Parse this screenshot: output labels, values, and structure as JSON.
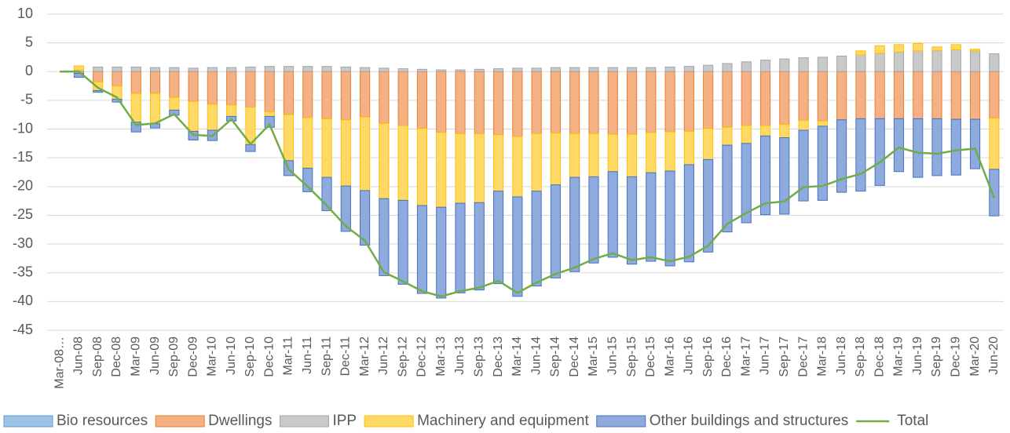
{
  "chart_data": {
    "type": "bar",
    "stacked": true,
    "categories": [
      "Mar-08…",
      "Jun-08",
      "Sep-08",
      "Dec-08",
      "Mar-09",
      "Jun-09",
      "Sep-09",
      "Dec-09",
      "Mar-10",
      "Jun-10",
      "Sep-10",
      "Dec-10",
      "Mar-11",
      "Jun-11",
      "Sep-11",
      "Dec-11",
      "Mar-12",
      "Jun-12",
      "Sep-12",
      "Dec-12",
      "Mar-13",
      "Jun-13",
      "Sep-13",
      "Dec-13",
      "Mar-14",
      "Jun-14",
      "Sep-14",
      "Dec-14",
      "Mar-15",
      "Jun-15",
      "Sep-15",
      "Dec-15",
      "Mar-16",
      "Jun-16",
      "Sep-16",
      "Dec-16",
      "Mar-17",
      "Jun-17",
      "Sep-17",
      "Dec-17",
      "Mar-18",
      "Jun-18",
      "Sep-18",
      "Dec-18",
      "Mar-19",
      "Jun-19",
      "Sep-19",
      "Dec-19",
      "Mar-20",
      "Jun-20"
    ],
    "series": [
      {
        "name": "Bio resources",
        "color": "#9dc3e6",
        "edgecolor": "#5b9bd5",
        "values": [
          0,
          0,
          0,
          0,
          0,
          0,
          0,
          0,
          0,
          0,
          0,
          0,
          0,
          0,
          0,
          0,
          0,
          0,
          0,
          0,
          0,
          0,
          0,
          0,
          0,
          0,
          0,
          0,
          0,
          0,
          0,
          0,
          0,
          0,
          0,
          0,
          0,
          0,
          0,
          0,
          0,
          0,
          0,
          0,
          0,
          0,
          0,
          0,
          0,
          0
        ]
      },
      {
        "name": "Dwellings",
        "color": "#f4b183",
        "edgecolor": "#ed7d31",
        "values": [
          0,
          -0.3,
          -1.8,
          -2.5,
          -3.8,
          -3.8,
          -4.5,
          -5.2,
          -5.7,
          -5.8,
          -6.2,
          -7.0,
          -7.5,
          -8.0,
          -8.2,
          -8.4,
          -7.9,
          -9.0,
          -9.4,
          -9.9,
          -10.6,
          -10.8,
          -10.8,
          -11.0,
          -11.3,
          -10.8,
          -10.7,
          -10.8,
          -10.8,
          -10.9,
          -10.9,
          -10.6,
          -10.5,
          -10.4,
          -9.9,
          -9.7,
          -9.4,
          -9.4,
          -9.2,
          -8.5,
          -8.6,
          -8.4,
          -8.2,
          -8.2,
          -8.2,
          -8.2,
          -8.2,
          -8.3,
          -8.3,
          -8.1
        ]
      },
      {
        "name": "IPP",
        "color": "#c9c9c9",
        "edgecolor": "#a5a5a5",
        "values": [
          0,
          0.3,
          0.8,
          0.8,
          0.8,
          0.7,
          0.7,
          0.6,
          0.7,
          0.7,
          0.8,
          0.9,
          0.9,
          0.9,
          0.9,
          0.8,
          0.7,
          0.6,
          0.5,
          0.4,
          0.3,
          0.3,
          0.4,
          0.5,
          0.6,
          0.6,
          0.7,
          0.7,
          0.7,
          0.7,
          0.7,
          0.7,
          0.8,
          0.9,
          1.1,
          1.4,
          1.7,
          2.0,
          2.2,
          2.4,
          2.5,
          2.7,
          2.9,
          3.2,
          3.4,
          3.6,
          3.7,
          3.8,
          3.6,
          3.1
        ]
      },
      {
        "name": "Machinery and equipment",
        "color": "#ffd966",
        "edgecolor": "#ffc000",
        "values": [
          0,
          0.7,
          -1.5,
          -2.3,
          -5.0,
          -5.3,
          -2.2,
          -5.2,
          -4.5,
          -2.0,
          -6.5,
          -0.8,
          -8.0,
          -8.8,
          -10.2,
          -11.5,
          -12.8,
          -13.1,
          -13.0,
          -13.4,
          -13.0,
          -12.1,
          -12.0,
          -9.8,
          -10.5,
          -10.0,
          -9.0,
          -7.6,
          -7.5,
          -6.5,
          -7.4,
          -7.0,
          -6.8,
          -5.8,
          -5.4,
          -3.1,
          -3.1,
          -1.8,
          -2.3,
          -1.7,
          -0.9,
          0,
          0.7,
          1.3,
          1.3,
          1.3,
          0.6,
          0.9,
          0.3,
          -8.9
        ]
      },
      {
        "name": "Other buildings and structures",
        "color": "#8faadc",
        "edgecolor": "#4472c4",
        "values": [
          0,
          -0.7,
          -0.3,
          -0.5,
          -1.7,
          -0.7,
          -0.9,
          -1.5,
          -1.8,
          -0.8,
          -1.2,
          -1.9,
          -2.6,
          -4.1,
          -5.8,
          -7.9,
          -9.5,
          -13.4,
          -14.6,
          -15.3,
          -15.8,
          -15.6,
          -15.2,
          -16.1,
          -17.3,
          -16.5,
          -16.2,
          -16.4,
          -15.0,
          -14.9,
          -15.2,
          -15.4,
          -16.5,
          -16.9,
          -16.1,
          -15.1,
          -13.8,
          -13.7,
          -13.3,
          -12.3,
          -12.9,
          -12.6,
          -12.6,
          -11.6,
          -9.2,
          -10.2,
          -9.9,
          -9.7,
          -8.6,
          -8.1
        ]
      },
      {
        "name": "Total",
        "type": "line",
        "color": "#70ad47",
        "values": [
          0,
          0,
          -2.8,
          -4.5,
          -9.3,
          -9.0,
          -7.4,
          -11.0,
          -11.2,
          -8.3,
          -12.6,
          -9.2,
          -17.0,
          -20.0,
          -23.3,
          -26.9,
          -29.4,
          -34.9,
          -36.5,
          -38.2,
          -39.1,
          -38.2,
          -37.6,
          -36.4,
          -38.5,
          -36.7,
          -35.2,
          -34.1,
          -32.6,
          -31.6,
          -32.8,
          -32.3,
          -33.0,
          -32.2,
          -30.3,
          -26.5,
          -24.6,
          -22.9,
          -22.6,
          -20.1,
          -19.9,
          -18.7,
          -17.8,
          -15.8,
          -13.2,
          -14.1,
          -14.3,
          -13.7,
          -13.4,
          -22.0
        ]
      }
    ],
    "ylim": [
      -45,
      10
    ],
    "yticks": [
      -45,
      -40,
      -35,
      -30,
      -25,
      -20,
      -15,
      -10,
      -5,
      0,
      5,
      10
    ],
    "grid": true,
    "legend": "bottom"
  }
}
